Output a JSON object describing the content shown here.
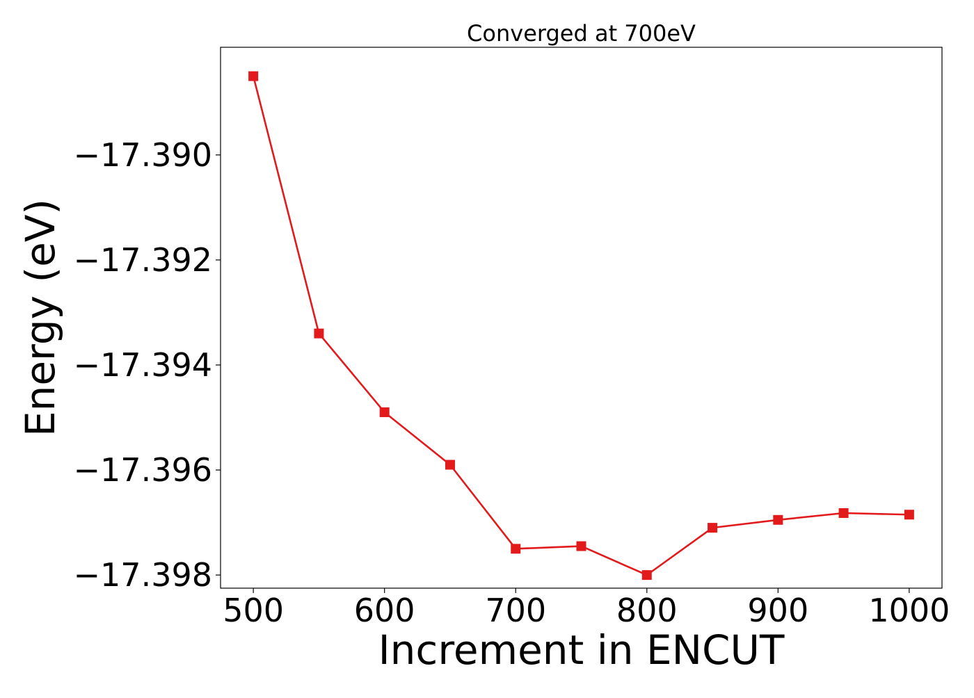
{
  "chart_data": {
    "type": "line",
    "title": "Converged at 700eV",
    "xlabel": "Increment in ENCUT",
    "ylabel": "Energy (eV)",
    "x": [
      500,
      550,
      600,
      650,
      700,
      750,
      800,
      850,
      900,
      950,
      1000
    ],
    "series": [
      {
        "values": [
          -17.3885,
          -17.3934,
          -17.3949,
          -17.3959,
          -17.3975,
          -17.39745,
          -17.398,
          -17.3971,
          -17.39695,
          -17.39682,
          -17.39685
        ],
        "color": "#e31a1c",
        "marker": "square"
      }
    ],
    "xlim": [
      475,
      1025
    ],
    "ylim": [
      -17.39825,
      -17.38795
    ],
    "xticks": [
      500,
      600,
      700,
      800,
      900,
      1000
    ],
    "xtick_labels": [
      "500",
      "600",
      "700",
      "800",
      "900",
      "1000"
    ],
    "yticks": [
      -17.39,
      -17.392,
      -17.394,
      -17.396,
      -17.398
    ],
    "ytick_labels": [
      "−17.390",
      "−17.392",
      "−17.394",
      "−17.396",
      "−17.398"
    ],
    "grid": false,
    "legend": "none"
  }
}
